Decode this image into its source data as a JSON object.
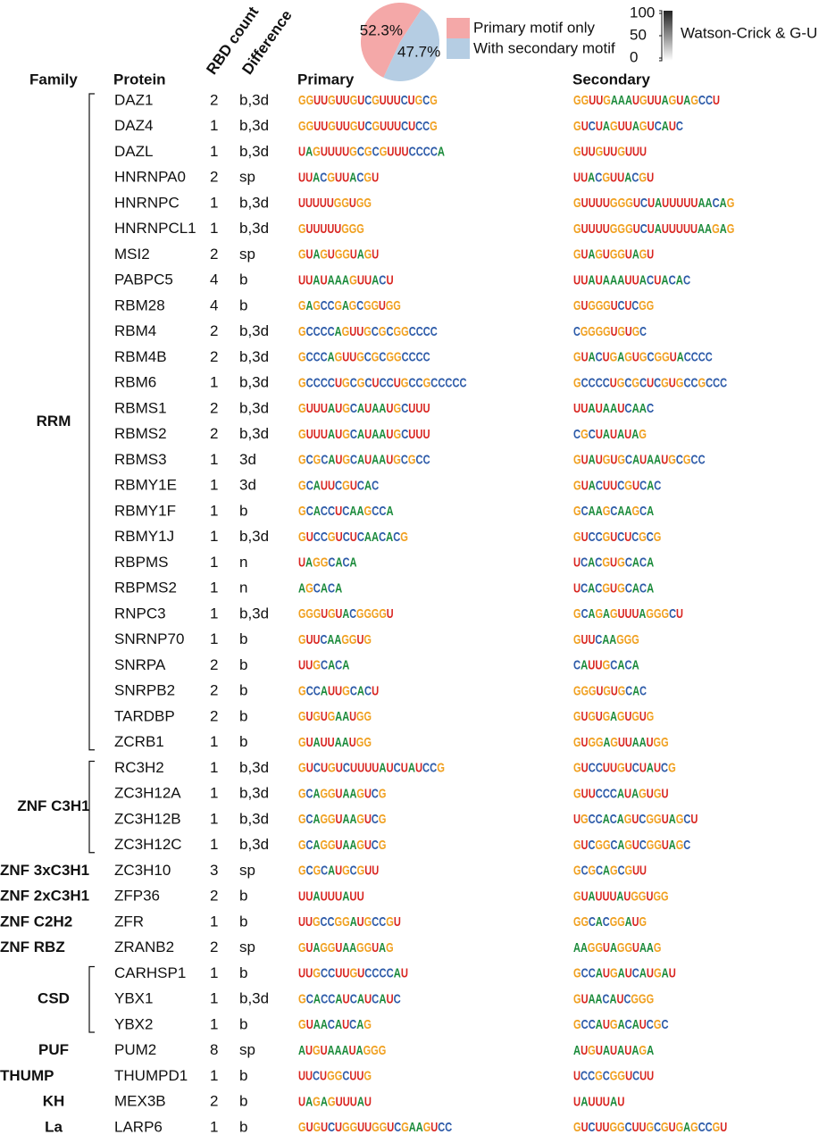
{
  "chart_data": {
    "type": "pie",
    "categories": [
      "Primary motif only",
      "With secondary motif"
    ],
    "values": [
      52.3,
      47.7
    ],
    "value_labels": [
      "52.3%",
      "47.7%"
    ],
    "colors": [
      "#f4a8a8",
      "#b5cde3"
    ]
  },
  "colorbar": {
    "label": "Watson-Crick & G-U",
    "ticks": [
      100,
      50,
      0
    ]
  },
  "headers": {
    "family": "Family",
    "protein": "Protein",
    "rbd_count": "RBD count",
    "difference": "Difference",
    "primary": "Primary",
    "secondary": "Secondary"
  },
  "families": [
    {
      "name": "RRM",
      "members": [
        {
          "protein": "DAZ1",
          "rbd_count": 2,
          "difference": "b,3d",
          "primary": "GGUUGUUGUCGUUUCUGCG",
          "secondary": "GGUUGAAAUGUUAGUAGCCU"
        },
        {
          "protein": "DAZ4",
          "rbd_count": 1,
          "difference": "b,3d",
          "primary": "GGUUGUUGUCGUUUCUCCG",
          "secondary": "GUCUAGUUAGUCAUC"
        },
        {
          "protein": "DAZL",
          "rbd_count": 1,
          "difference": "b,3d",
          "primary": "UAGUUUUGCGCGUUUCCCCA",
          "secondary": "GUUGUUGUUU"
        },
        {
          "protein": "HNRNPA0",
          "rbd_count": 2,
          "difference": "sp",
          "primary": "UUACGUUACGU",
          "secondary": "UUACGUUACGU"
        },
        {
          "protein": "HNRNPC",
          "rbd_count": 1,
          "difference": "b,3d",
          "primary": "UUUUUGGUGG",
          "secondary": "GUUUUGGGUCUAUUUUUAACAG"
        },
        {
          "protein": "HNRNPCL1",
          "rbd_count": 1,
          "difference": "b,3d",
          "primary": "GUUUUUGGG",
          "secondary": "GUUUUGGGUCUAUUUUUAAGAG"
        },
        {
          "protein": "MSI2",
          "rbd_count": 2,
          "difference": "sp",
          "primary": "GUAGUGGUAGU",
          "secondary": "GUAGUGGUAGU"
        },
        {
          "protein": "PABPC5",
          "rbd_count": 4,
          "difference": "b",
          "primary": "UUAUAAAGUUACU",
          "secondary": "UUAUAAAUUACUACAC"
        },
        {
          "protein": "RBM28",
          "rbd_count": 4,
          "difference": "b",
          "primary": "GAGCCGAGCGGUGG",
          "secondary": "GUGGGUCUCGG"
        },
        {
          "protein": "RBM4",
          "rbd_count": 2,
          "difference": "b,3d",
          "primary": "GCCCCAGUUGCGCGGCCCC",
          "secondary": "CGGGGUGUGC"
        },
        {
          "protein": "RBM4B",
          "rbd_count": 2,
          "difference": "b,3d",
          "primary": "GCCCAGUUGCGCGGCCCC",
          "secondary": "GUACUGAGUGCGGUACCCC"
        },
        {
          "protein": "RBM6",
          "rbd_count": 1,
          "difference": "b,3d",
          "primary": "GCCCCUGCGCUCCUGCCGCCCCC",
          "secondary": "GCCCCUGCGCUCGUGCCGCCC"
        },
        {
          "protein": "RBMS1",
          "rbd_count": 2,
          "difference": "b,3d",
          "primary": "GUUUAUGCAUAAUGCUUU",
          "secondary": "UUAUAAUCAAC"
        },
        {
          "protein": "RBMS2",
          "rbd_count": 2,
          "difference": "b,3d",
          "primary": "GUUUAUGCAUAAUGCUUU",
          "secondary": "CGCUAUAUAG"
        },
        {
          "protein": "RBMS3",
          "rbd_count": 1,
          "difference": "3d",
          "primary": "GCGCAUGCAUAAUGCGCC",
          "secondary": "GUAUGUGCAUAAUGCGCC"
        },
        {
          "protein": "RBMY1E",
          "rbd_count": 1,
          "difference": "3d",
          "primary": "GCAUUCGUCAC",
          "secondary": "GUACUUCGUCAC"
        },
        {
          "protein": "RBMY1F",
          "rbd_count": 1,
          "difference": "b",
          "primary": "GCACCUCAAGCCA",
          "secondary": "GCAAGCAAGCA"
        },
        {
          "protein": "RBMY1J",
          "rbd_count": 1,
          "difference": "b,3d",
          "primary": "GUCCGUCUCAACACG",
          "secondary": "GUCCGUCUCGCG"
        },
        {
          "protein": "RBPMS",
          "rbd_count": 1,
          "difference": "n",
          "primary": "UAGGCACA",
          "secondary": "UCACGUGCACA"
        },
        {
          "protein": "RBPMS2",
          "rbd_count": 1,
          "difference": "n",
          "primary": "AGCACA",
          "secondary": "UCACGUGCACA"
        },
        {
          "protein": "RNPC3",
          "rbd_count": 1,
          "difference": "b,3d",
          "primary": "GGGUGUACGGGGU",
          "secondary": "GCAGAGUUUAGGGCU"
        },
        {
          "protein": "SNRNP70",
          "rbd_count": 1,
          "difference": "b",
          "primary": "GUUCAAGGUG",
          "secondary": "GUUCAAGGG"
        },
        {
          "protein": "SNRPA",
          "rbd_count": 2,
          "difference": "b",
          "primary": "UUGCACA",
          "secondary": "CAUUGCACA"
        },
        {
          "protein": "SNRPB2",
          "rbd_count": 2,
          "difference": "b",
          "primary": "GCCAUUGCACU",
          "secondary": "GGGUGUGCAC"
        },
        {
          "protein": "TARDBP",
          "rbd_count": 2,
          "difference": "b",
          "primary": "GUGUGAAUGG",
          "secondary": "GUGUGAGUGUG"
        },
        {
          "protein": "ZCRB1",
          "rbd_count": 1,
          "difference": "b",
          "primary": "GUAUUAAUGG",
          "secondary": "GUGGAGUUAAUGG"
        }
      ]
    },
    {
      "name": "ZNF C3H1",
      "members": [
        {
          "protein": "RC3H2",
          "rbd_count": 1,
          "difference": "b,3d",
          "primary": "GUCUGUCUUUUAUCUAUCCG",
          "secondary": "GUCCUUGUCUAUCG"
        },
        {
          "protein": "ZC3H12A",
          "rbd_count": 1,
          "difference": "b,3d",
          "primary": "GCAGGUAAGUCG",
          "secondary": "GUUCCCAUAGUGU"
        },
        {
          "protein": "ZC3H12B",
          "rbd_count": 1,
          "difference": "b,3d",
          "primary": "GCAGGUAAGUCG",
          "secondary": "UGCCACAGUCGGUAGCU"
        },
        {
          "protein": "ZC3H12C",
          "rbd_count": 1,
          "difference": "b,3d",
          "primary": "GCAGGUAAGUCG",
          "secondary": "GUCGGCAGUCGGUAGC"
        }
      ]
    },
    {
      "name": "ZNF 3xC3H1",
      "members": [
        {
          "protein": "ZC3H10",
          "rbd_count": 3,
          "difference": "sp",
          "primary": "GCGCAUGCGUU",
          "secondary": "GCGCAGCGUU"
        }
      ]
    },
    {
      "name": "ZNF 2xC3H1",
      "members": [
        {
          "protein": "ZFP36",
          "rbd_count": 2,
          "difference": "b",
          "primary": "UUAUUUAUU",
          "secondary": "GUAUUUAUGGUGG"
        }
      ]
    },
    {
      "name": "ZNF C2H2",
      "members": [
        {
          "protein": "ZFR",
          "rbd_count": 1,
          "difference": "b",
          "primary": "UUGCCGGAUGCCGU",
          "secondary": "GGCACGGAUG"
        }
      ]
    },
    {
      "name": "ZNF RBZ",
      "members": [
        {
          "protein": "ZRANB2",
          "rbd_count": 2,
          "difference": "sp",
          "primary": "GUAGGUAAGGUAG",
          "secondary": "AAGGUAGGUAAG"
        }
      ]
    },
    {
      "name": "CSD",
      "members": [
        {
          "protein": "CARHSP1",
          "rbd_count": 1,
          "difference": "b",
          "primary": "UUGCCUUGUCCCCAU",
          "secondary": "GCCAUGAUCAUGAU"
        },
        {
          "protein": "YBX1",
          "rbd_count": 1,
          "difference": "b,3d",
          "primary": "GCACCAUCAUCAUC",
          "secondary": "GUAACAUCGGG"
        },
        {
          "protein": "YBX2",
          "rbd_count": 1,
          "difference": "b",
          "primary": "GUAACAUCAG",
          "secondary": "GCCAUGACAUCGC"
        }
      ]
    },
    {
      "name": "PUF",
      "members": [
        {
          "protein": "PUM2",
          "rbd_count": 8,
          "difference": "sp",
          "primary": "AUGUAAAUAGGG",
          "secondary": "AUGUAUAUAGA"
        }
      ]
    },
    {
      "name": "THUMP",
      "members": [
        {
          "protein": "THUMPD1",
          "rbd_count": 1,
          "difference": "b",
          "primary": "UUCUGGCUUG",
          "secondary": "UCCGCGGUCUU"
        }
      ]
    },
    {
      "name": "KH",
      "members": [
        {
          "protein": "MEX3B",
          "rbd_count": 2,
          "difference": "b",
          "primary": "UAGAGUUUAU",
          "secondary": "UAUUUAU"
        }
      ]
    },
    {
      "name": "La",
      "members": [
        {
          "protein": "LARP6",
          "rbd_count": 1,
          "difference": "b",
          "primary": "GUGUCUGGUUGGUCGAAGUCC",
          "secondary": "GUCUUGGCUUGCGUGAGCCGU"
        }
      ]
    }
  ]
}
